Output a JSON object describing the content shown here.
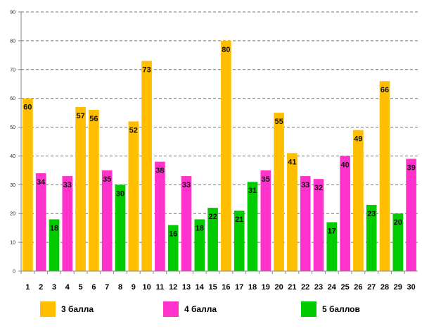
{
  "chart_data": {
    "type": "bar",
    "title": "",
    "xlabel": "",
    "ylabel": "",
    "ylim": [
      0,
      90
    ],
    "yticks": [
      0,
      10,
      20,
      30,
      40,
      50,
      60,
      70,
      80,
      90
    ],
    "grid": true,
    "legend_position": "bottom",
    "categories": [
      "1",
      "2",
      "3",
      "4",
      "5",
      "6",
      "7",
      "8",
      "9",
      "10",
      "11",
      "12",
      "13",
      "14",
      "15",
      "16",
      "17",
      "18",
      "19",
      "20",
      "21",
      "22",
      "23",
      "24",
      "25",
      "26",
      "27",
      "28",
      "29",
      "30"
    ],
    "values": [
      60,
      34,
      18,
      33,
      57,
      56,
      35,
      30,
      52,
      73,
      38,
      16,
      33,
      18,
      22,
      80,
      21,
      31,
      35,
      55,
      41,
      33,
      32,
      17,
      40,
      49,
      23,
      66,
      20,
      39
    ],
    "groups": [
      "3",
      "4",
      "5",
      "4",
      "3",
      "3",
      "4",
      "5",
      "3",
      "3",
      "4",
      "5",
      "4",
      "5",
      "5",
      "3",
      "5",
      "5",
      "4",
      "3",
      "3",
      "4",
      "4",
      "5",
      "4",
      "3",
      "5",
      "3",
      "5",
      "4"
    ],
    "series": [
      {
        "key": "3",
        "name": "3 балла",
        "color": "#FFBF00"
      },
      {
        "key": "4",
        "name": "4 балла",
        "color": "#FF33CC"
      },
      {
        "key": "5",
        "name": "5 баллов",
        "color": "#00CC00"
      }
    ]
  }
}
